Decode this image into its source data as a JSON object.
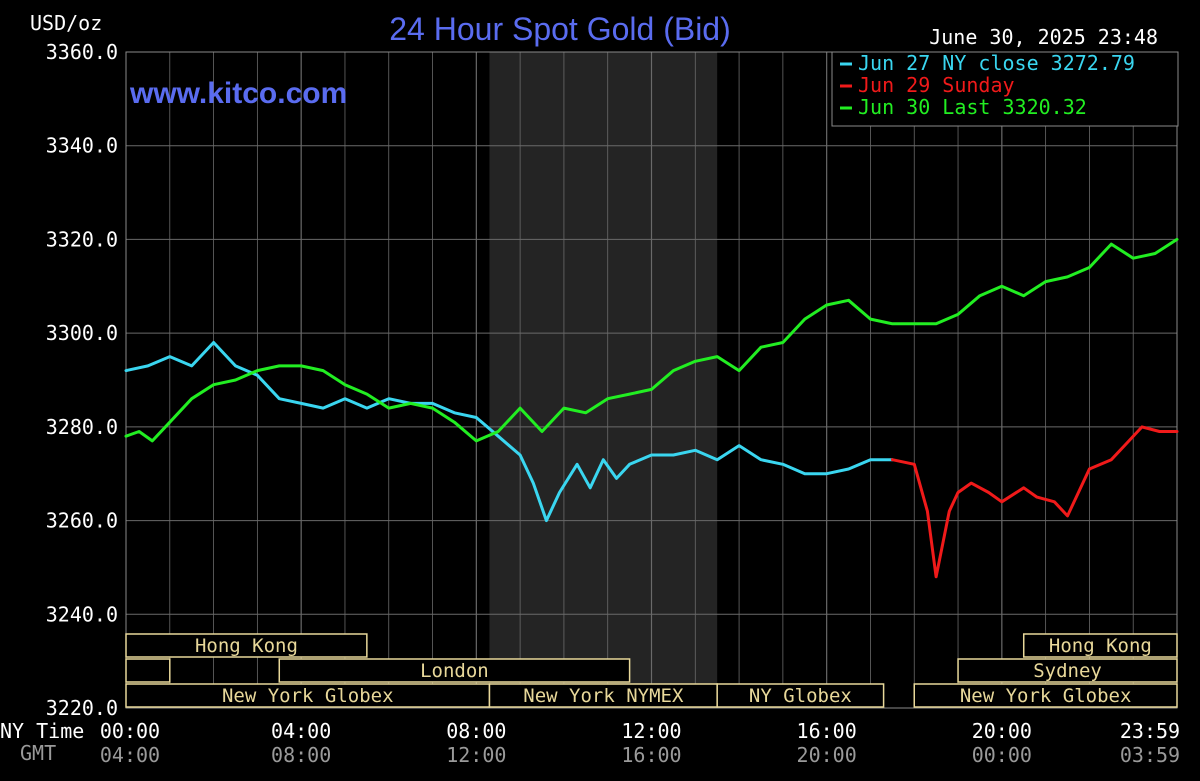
{
  "chart_data": {
    "type": "line",
    "title": "24 Hour Spot Gold (Bid)",
    "ylabel": "USD/oz",
    "website": "www.kitco.com",
    "timestamp": "June 30, 2025 23:48",
    "ylim": [
      3220,
      3360
    ],
    "yticks": [
      "3360.0",
      "3340.0",
      "3320.0",
      "3300.0",
      "3280.0",
      "3260.0",
      "3240.0",
      "3220.0"
    ],
    "xlim": [
      0,
      24
    ],
    "axis_row_labels": {
      "ny": "NY Time",
      "gmt": "GMT"
    },
    "xticks": [
      {
        "hour": 0,
        "ny": "00:00",
        "gmt": "04:00"
      },
      {
        "hour": 4,
        "ny": "04:00",
        "gmt": "08:00"
      },
      {
        "hour": 8,
        "ny": "08:00",
        "gmt": "12:00"
      },
      {
        "hour": 12,
        "ny": "12:00",
        "gmt": "16:00"
      },
      {
        "hour": 16,
        "ny": "16:00",
        "gmt": "20:00"
      },
      {
        "hour": 20,
        "ny": "20:00",
        "gmt": "00:00"
      },
      {
        "hour": 23.98,
        "ny": "23:59",
        "gmt": "03:59"
      }
    ],
    "grid": true,
    "shaded_region_hours": [
      8.3,
      13.5
    ],
    "legend_position": "top-right",
    "series": [
      {
        "name": "Jun 27 NY close 3272.79",
        "color": "#3ad6f0",
        "x": [
          0,
          0.5,
          1,
          1.5,
          2,
          2.5,
          3,
          3.5,
          4,
          4.5,
          5,
          5.5,
          6,
          6.5,
          7,
          7.5,
          8,
          8.5,
          9,
          9.3,
          9.6,
          9.9,
          10.3,
          10.6,
          10.9,
          11.2,
          11.5,
          12,
          12.5,
          13,
          13.5,
          14,
          14.5,
          15,
          15.5,
          16,
          16.5,
          17,
          17.5
        ],
        "y": [
          3292,
          3293,
          3295,
          3293,
          3298,
          3293,
          3291,
          3286,
          3285,
          3284,
          3286,
          3284,
          3286,
          3285,
          3285,
          3283,
          3282,
          3278,
          3274,
          3268,
          3260,
          3266,
          3272,
          3267,
          3273,
          3269,
          3272,
          3274,
          3274,
          3275,
          3273,
          3276,
          3273,
          3272,
          3270,
          3270,
          3271,
          3273,
          3273
        ]
      },
      {
        "name": "Jun 29 Sunday",
        "color": "#f01a1a",
        "x": [
          17.5,
          18,
          18.3,
          18.5,
          18.8,
          19,
          19.3,
          19.7,
          20,
          20.5,
          20.8,
          21.2,
          21.5,
          22,
          22.5,
          22.8,
          23.2,
          23.6,
          24
        ],
        "y": [
          3273,
          3272,
          3262,
          3248,
          3262,
          3266,
          3268,
          3266,
          3264,
          3267,
          3265,
          3264,
          3261,
          3271,
          3273,
          3276,
          3280,
          3279,
          3279
        ]
      },
      {
        "name": "Jun 30 Last 3320.32",
        "color": "#22ee22",
        "x": [
          0,
          0.3,
          0.6,
          1,
          1.5,
          2,
          2.5,
          3,
          3.5,
          4,
          4.5,
          5,
          5.5,
          6,
          6.5,
          7,
          7.5,
          8,
          8.5,
          9,
          9.5,
          10,
          10.5,
          11,
          11.5,
          12,
          12.5,
          13,
          13.5,
          14,
          14.5,
          15,
          15.5,
          16,
          16.5,
          17,
          17.5,
          18,
          18.5,
          19,
          19.5,
          20,
          20.5,
          21,
          21.5,
          22,
          22.5,
          23,
          23.5,
          24
        ],
        "y": [
          3278,
          3279,
          3277,
          3281,
          3286,
          3289,
          3290,
          3292,
          3293,
          3293,
          3292,
          3289,
          3287,
          3284,
          3285,
          3284,
          3281,
          3277,
          3279,
          3284,
          3279,
          3284,
          3283,
          3286,
          3287,
          3288,
          3292,
          3294,
          3295,
          3292,
          3297,
          3298,
          3303,
          3306,
          3307,
          3303,
          3302,
          3302,
          3302,
          3304,
          3308,
          3310,
          3308,
          3311,
          3312,
          3314,
          3319,
          3316,
          3317,
          3320
        ]
      }
    ],
    "sessions": [
      {
        "label": "Hong Kong",
        "row": 0,
        "start": 0,
        "end": 5.5
      },
      {
        "label": "",
        "row": 1,
        "start": 0,
        "end": 1
      },
      {
        "label": "London",
        "row": 1,
        "start": 3.5,
        "end": 11.5
      },
      {
        "label": "New York Globex",
        "row": 2,
        "start": 0,
        "end": 8.3
      },
      {
        "label": "New York NYMEX",
        "row": 2,
        "start": 8.3,
        "end": 13.5
      },
      {
        "label": "NY Globex",
        "row": 2,
        "start": 13.5,
        "end": 17.3
      },
      {
        "label": "Hong Kong",
        "row": 0,
        "start": 20.5,
        "end": 24
      },
      {
        "label": "Sydney",
        "row": 1,
        "start": 19,
        "end": 24
      },
      {
        "label": "New York Globex",
        "row": 2,
        "start": 18,
        "end": 24
      }
    ],
    "colors": {
      "background": "#000000",
      "grid": "#6a6a6a",
      "shade": "#242424",
      "session_border": "#e8d89a",
      "title": "#5a6cf0"
    }
  }
}
